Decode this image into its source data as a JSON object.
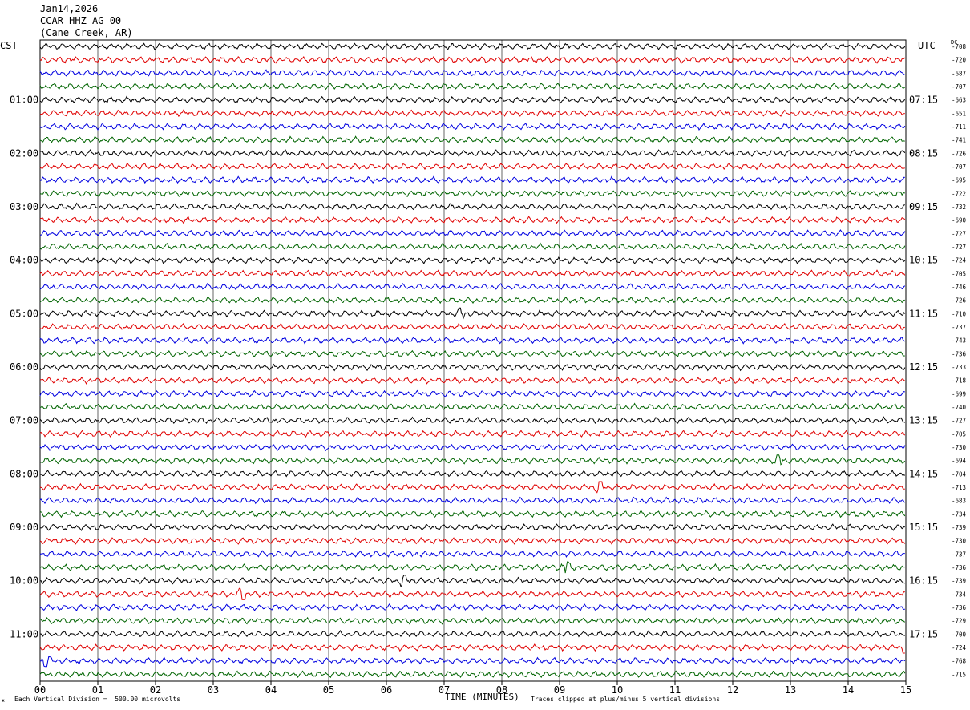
{
  "header": {
    "date": "Jan14,2026",
    "station": "CCAR HHZ AG 00",
    "location": "(Cane Creek, AR)"
  },
  "labels": {
    "left_tz": "CST",
    "right_tz": "UTC",
    "dc": "DC"
  },
  "footer": {
    "scale": "Each Vertical Division =  500.00 microvolts",
    "xlabel": "TIME (MINUTES)",
    "clip": "Traces clipped at plus/minus 5 vertical divisions",
    "credit": "ж"
  },
  "colors": {
    "trace_cycle": [
      "#000000",
      "#e00000",
      "#0000e0",
      "#006400"
    ],
    "grid": "#000000"
  },
  "chart_data": {
    "type": "line",
    "title": "",
    "xlabel": "TIME (MINUTES)",
    "xlim": [
      0,
      15
    ],
    "x_ticks": [
      "00",
      "01",
      "02",
      "03",
      "04",
      "05",
      "06",
      "07",
      "08",
      "09",
      "10",
      "11",
      "12",
      "13",
      "14",
      "15"
    ],
    "left_hour_labels": [
      "01:00",
      "02:00",
      "03:00",
      "04:00",
      "05:00",
      "06:00",
      "07:00",
      "08:00",
      "09:00",
      "10:00",
      "11:00"
    ],
    "right_hour_labels": [
      "07:15",
      "08:15",
      "09:15",
      "10:15",
      "11:15",
      "12:15",
      "13:15",
      "14:15",
      "15:15",
      "16:15",
      "17:15"
    ],
    "trace_count": 48,
    "dc_offsets": [
      "-708",
      "-720",
      "-687",
      "-707",
      "-663",
      "-651",
      "-711",
      "-741",
      "-726",
      "-707",
      "-695",
      "-722",
      "-732",
      "-690",
      "-727",
      "-727",
      "-724",
      "-705",
      "-746",
      "-726",
      "-710",
      "-737",
      "-743",
      "-736",
      "-733",
      "-718",
      "-699",
      "-740",
      "-727",
      "-705",
      "-730",
      "-694",
      "-704",
      "-713",
      "-683",
      "-734",
      "-739",
      "-730",
      "-737",
      "-736",
      "-739",
      "-734",
      "-736",
      "-729",
      "-700",
      "-724",
      "-768",
      "-715"
    ],
    "events": [
      {
        "trace": 20,
        "minute": 7.3,
        "amp": 1.6
      },
      {
        "trace": 33,
        "minute": 9.7,
        "amp": 1.8
      },
      {
        "trace": 31,
        "minute": 12.8,
        "amp": 1.7
      },
      {
        "trace": 39,
        "minute": 9.1,
        "amp": 2.6
      },
      {
        "trace": 40,
        "minute": 6.3,
        "amp": 1.6
      },
      {
        "trace": 41,
        "minute": 3.5,
        "amp": 2.4
      },
      {
        "trace": 45,
        "minute": 15.0,
        "amp": 2.8
      },
      {
        "trace": 46,
        "minute": 0.1,
        "amp": 2.2
      }
    ]
  }
}
